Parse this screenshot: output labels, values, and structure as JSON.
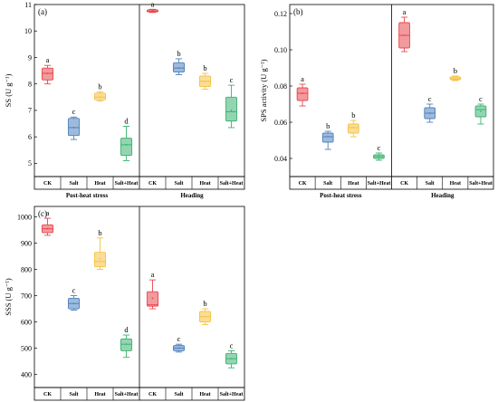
{
  "chart_data": [
    {
      "panel": "(a)",
      "type": "box",
      "ylabel": "SS (U g⁻¹)",
      "ylim": [
        4.5,
        11.0
      ],
      "yticks": [
        5,
        6,
        7,
        8,
        9,
        10,
        11
      ],
      "groups": [
        "Post-heat stress",
        "Heading"
      ],
      "categories": [
        "CK",
        "Salt",
        "Heat",
        "Salt+Heat"
      ],
      "boxes": [
        {
          "group": 0,
          "category": "CK",
          "min": 8.0,
          "q1": 8.15,
          "median": 8.4,
          "q3": 8.6,
          "max": 8.7,
          "mean": 8.4,
          "letter": "a",
          "color": "#e8474c"
        },
        {
          "group": 0,
          "category": "Salt",
          "min": 5.9,
          "q1": 6.05,
          "median": 6.35,
          "q3": 6.7,
          "max": 6.75,
          "mean": 6.35,
          "letter": "c",
          "color": "#4f81bd"
        },
        {
          "group": 0,
          "category": "Heat",
          "min": 7.35,
          "q1": 7.4,
          "median": 7.5,
          "q3": 7.65,
          "max": 7.7,
          "mean": 7.5,
          "letter": "b",
          "color": "#f5c242"
        },
        {
          "group": 0,
          "category": "Salt+Heat",
          "min": 5.1,
          "q1": 5.3,
          "median": 5.7,
          "q3": 5.95,
          "max": 6.4,
          "mean": 5.7,
          "letter": "d",
          "color": "#3cb371"
        },
        {
          "group": 1,
          "category": "CK",
          "min": 10.7,
          "q1": 10.72,
          "median": 10.75,
          "q3": 10.8,
          "max": 10.82,
          "mean": 10.76,
          "letter": "a",
          "color": "#e8474c"
        },
        {
          "group": 1,
          "category": "Salt",
          "min": 8.35,
          "q1": 8.45,
          "median": 8.6,
          "q3": 8.8,
          "max": 8.95,
          "mean": 8.6,
          "letter": "b",
          "color": "#4f81bd"
        },
        {
          "group": 1,
          "category": "Heat",
          "min": 7.8,
          "q1": 7.9,
          "median": 8.1,
          "q3": 8.3,
          "max": 8.4,
          "mean": 8.1,
          "letter": "b",
          "color": "#f5c242"
        },
        {
          "group": 1,
          "category": "Salt+Heat",
          "min": 6.35,
          "q1": 6.6,
          "median": 6.95,
          "q3": 7.5,
          "max": 7.95,
          "mean": 7.0,
          "letter": "c",
          "color": "#3cb371"
        }
      ]
    },
    {
      "panel": "(b)",
      "type": "box",
      "ylabel": "SPS activity (U g⁻¹)",
      "ylim": [
        0.03,
        0.125
      ],
      "yticks": [
        0.04,
        0.06,
        0.08,
        0.1,
        0.12
      ],
      "ytick_labels": [
        "0.04",
        "0.06",
        "0.08",
        "0.10",
        "0.12"
      ],
      "groups": [
        "Post-heat stress",
        "Heading"
      ],
      "categories": [
        "CK",
        "Salt",
        "Heat",
        "Salt+Heat"
      ],
      "boxes": [
        {
          "group": 0,
          "category": "CK",
          "min": 0.069,
          "q1": 0.072,
          "median": 0.076,
          "q3": 0.079,
          "max": 0.081,
          "mean": 0.076,
          "letter": "a",
          "color": "#e8474c"
        },
        {
          "group": 0,
          "category": "Salt",
          "min": 0.045,
          "q1": 0.049,
          "median": 0.052,
          "q3": 0.054,
          "max": 0.055,
          "mean": 0.052,
          "letter": "b",
          "color": "#4f81bd"
        },
        {
          "group": 0,
          "category": "Heat",
          "min": 0.052,
          "q1": 0.054,
          "median": 0.057,
          "q3": 0.059,
          "max": 0.061,
          "mean": 0.057,
          "letter": "b",
          "color": "#f5c242"
        },
        {
          "group": 0,
          "category": "Salt+Heat",
          "min": 0.039,
          "q1": 0.04,
          "median": 0.041,
          "q3": 0.042,
          "max": 0.043,
          "mean": 0.041,
          "letter": "c",
          "color": "#3cb371"
        },
        {
          "group": 1,
          "category": "CK",
          "min": 0.099,
          "q1": 0.101,
          "median": 0.108,
          "q3": 0.115,
          "max": 0.118,
          "mean": 0.108,
          "letter": "a",
          "color": "#e8474c"
        },
        {
          "group": 1,
          "category": "Salt",
          "min": 0.06,
          "q1": 0.062,
          "median": 0.065,
          "q3": 0.068,
          "max": 0.07,
          "mean": 0.065,
          "letter": "c",
          "color": "#4f81bd"
        },
        {
          "group": 1,
          "category": "Heat",
          "min": 0.083,
          "q1": 0.0835,
          "median": 0.084,
          "q3": 0.085,
          "max": 0.0855,
          "mean": 0.084,
          "letter": "b",
          "color": "#f5c242"
        },
        {
          "group": 1,
          "category": "Salt+Heat",
          "min": 0.059,
          "q1": 0.063,
          "median": 0.067,
          "q3": 0.069,
          "max": 0.07,
          "mean": 0.066,
          "letter": "c",
          "color": "#3cb371"
        }
      ]
    },
    {
      "panel": "(c)",
      "type": "box",
      "ylabel": "SSS (U g⁻¹)",
      "ylim": [
        350,
        1040
      ],
      "yticks": [
        400,
        500,
        600,
        700,
        800,
        900,
        1000
      ],
      "groups": [
        "Post-heat stress",
        "Heading"
      ],
      "categories": [
        "CK",
        "Salt",
        "Heat",
        "Salt+Heat"
      ],
      "boxes": [
        {
          "group": 0,
          "category": "CK",
          "min": 930,
          "q1": 940,
          "median": 955,
          "q3": 970,
          "max": 995,
          "mean": 955,
          "letter": "a",
          "color": "#e8474c"
        },
        {
          "group": 0,
          "category": "Salt",
          "min": 645,
          "q1": 650,
          "median": 670,
          "q3": 690,
          "max": 700,
          "mean": 670,
          "letter": "c",
          "color": "#4f81bd"
        },
        {
          "group": 0,
          "category": "Heat",
          "min": 800,
          "q1": 810,
          "median": 830,
          "q3": 865,
          "max": 920,
          "mean": 840,
          "letter": "b",
          "color": "#f5c242"
        },
        {
          "group": 0,
          "category": "Salt+Heat",
          "min": 465,
          "q1": 490,
          "median": 515,
          "q3": 535,
          "max": 550,
          "mean": 515,
          "letter": "d",
          "color": "#3cb371"
        },
        {
          "group": 1,
          "category": "CK",
          "min": 650,
          "q1": 660,
          "median": 665,
          "q3": 715,
          "max": 760,
          "mean": 690,
          "letter": "a",
          "color": "#e8474c"
        },
        {
          "group": 1,
          "category": "Salt",
          "min": 485,
          "q1": 490,
          "median": 500,
          "q3": 510,
          "max": 515,
          "mean": 500,
          "letter": "c",
          "color": "#4f81bd"
        },
        {
          "group": 1,
          "category": "Heat",
          "min": 590,
          "q1": 600,
          "median": 620,
          "q3": 640,
          "max": 650,
          "mean": 620,
          "letter": "b",
          "color": "#f5c242"
        },
        {
          "group": 1,
          "category": "Salt+Heat",
          "min": 425,
          "q1": 440,
          "median": 460,
          "q3": 480,
          "max": 490,
          "mean": 460,
          "letter": "c",
          "color": "#3cb371"
        }
      ]
    }
  ]
}
